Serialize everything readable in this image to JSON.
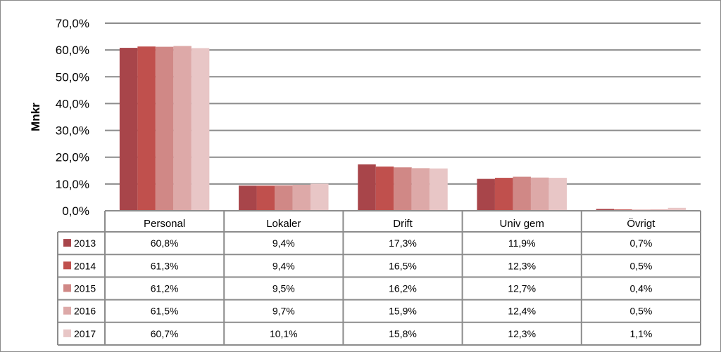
{
  "chart_data": {
    "type": "bar",
    "ylabel": "Mnkr",
    "ylim": [
      0,
      70
    ],
    "yticks": [
      "0,0%",
      "10,0%",
      "20,0%",
      "30,0%",
      "40,0%",
      "50,0%",
      "60,0%",
      "70,0%"
    ],
    "grid": true,
    "legend": "data-table",
    "categories": [
      "Personal",
      "Lokaler",
      "Drift",
      "Univ gem",
      "Övrigt"
    ],
    "series": [
      {
        "name": "2013",
        "color": "#a8454a",
        "values": [
          60.8,
          9.4,
          17.3,
          11.9,
          0.7
        ],
        "labels": [
          "60,8%",
          "9,4%",
          "17,3%",
          "11,9%",
          "0,7%"
        ]
      },
      {
        "name": "2014",
        "color": "#c0504d",
        "values": [
          61.3,
          9.4,
          16.5,
          12.3,
          0.5
        ],
        "labels": [
          "61,3%",
          "9,4%",
          "16,5%",
          "12,3%",
          "0,5%"
        ]
      },
      {
        "name": "2015",
        "color": "#d08886",
        "values": [
          61.2,
          9.5,
          16.2,
          12.7,
          0.4
        ],
        "labels": [
          "61,2%",
          "9,5%",
          "16,2%",
          "12,7%",
          "0,4%"
        ]
      },
      {
        "name": "2016",
        "color": "#dda9a8",
        "values": [
          61.5,
          9.7,
          15.9,
          12.4,
          0.5
        ],
        "labels": [
          "61,5%",
          "9,7%",
          "15,9%",
          "12,4%",
          "0,5%"
        ]
      },
      {
        "name": "2017",
        "color": "#e8c6c6",
        "values": [
          60.7,
          10.1,
          15.8,
          12.3,
          1.1
        ],
        "labels": [
          "60,7%",
          "10,1%",
          "15,8%",
          "12,3%",
          "1,1%"
        ]
      }
    ]
  }
}
